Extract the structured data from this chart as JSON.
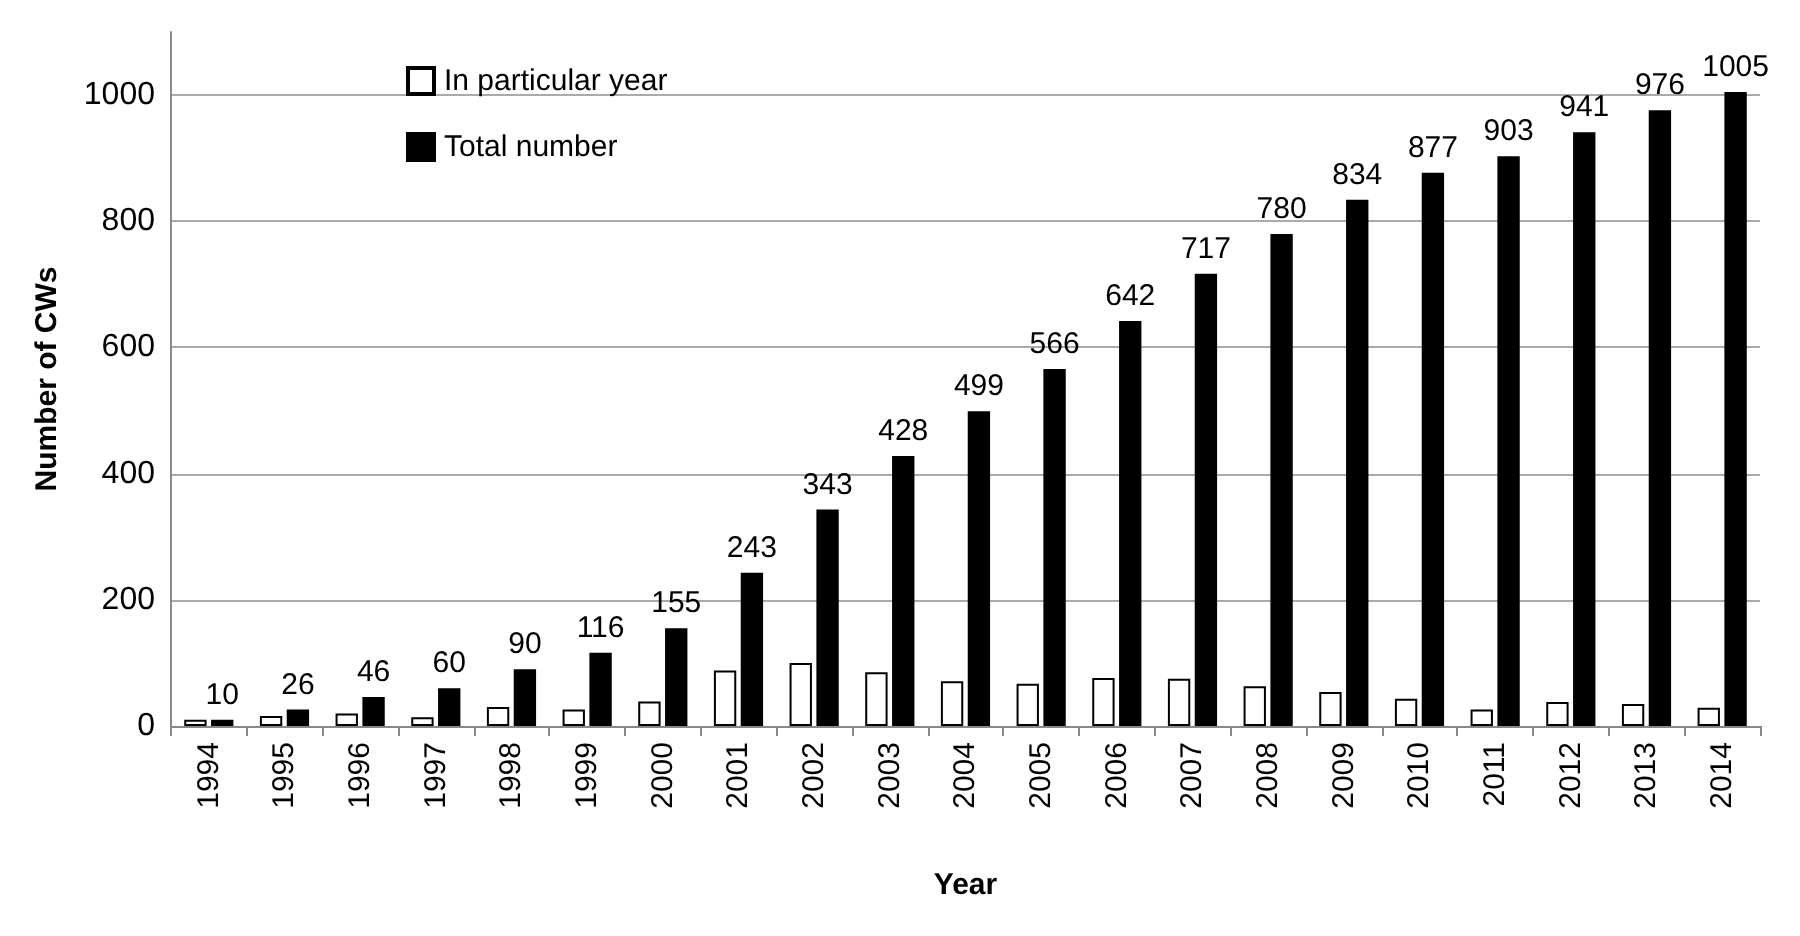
{
  "chart_data": {
    "type": "bar",
    "xlabel": "Year",
    "ylabel": "Number of CWs",
    "categories": [
      "1994",
      "1995",
      "1996",
      "1997",
      "1998",
      "1999",
      "2000",
      "2001",
      "2002",
      "2003",
      "2004",
      "2005",
      "2006",
      "2007",
      "2008",
      "2009",
      "2010",
      "2011",
      "2012",
      "2013",
      "2014"
    ],
    "series": [
      {
        "name": "In particular year",
        "color": "#ffffff",
        "values": [
          10,
          16,
          20,
          14,
          30,
          26,
          39,
          88,
          100,
          85,
          71,
          67,
          76,
          75,
          63,
          54,
          43,
          26,
          38,
          35,
          29
        ]
      },
      {
        "name": "Total number",
        "color": "#000000",
        "values": [
          10,
          26,
          46,
          60,
          90,
          116,
          155,
          243,
          343,
          428,
          499,
          566,
          642,
          717,
          780,
          834,
          877,
          903,
          941,
          976,
          1005
        ],
        "value_labels": [
          "10",
          "26",
          "46",
          "60",
          "90",
          "116",
          "155",
          "243",
          "343",
          "428",
          "499",
          "566",
          "642",
          "717",
          "780",
          "834",
          "877",
          "903",
          "941",
          "976",
          "1005"
        ]
      }
    ],
    "ylim": [
      0,
      1100
    ],
    "yticks": [
      0,
      200,
      400,
      600,
      800,
      1000
    ],
    "grid": "y",
    "legend": "top left"
  }
}
